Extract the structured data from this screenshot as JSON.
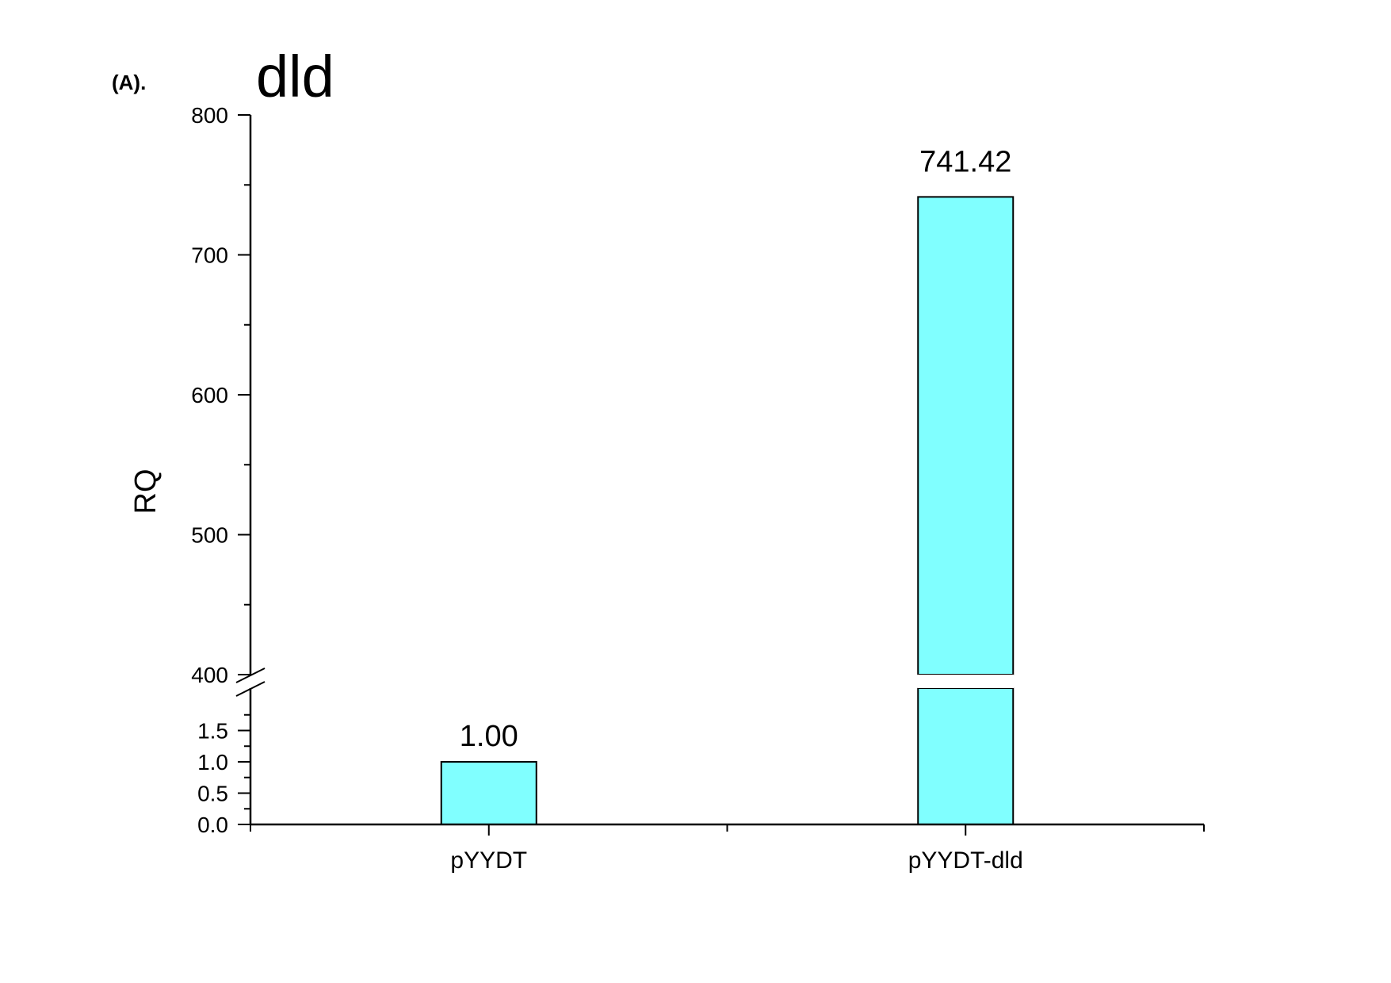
{
  "panel_label": "(A).",
  "chart_data": {
    "type": "bar",
    "title": "dld",
    "xlabel": "",
    "ylabel": "RQ",
    "categories": [
      "pYYDT",
      "pYYDT-dld"
    ],
    "values": [
      1.0,
      741.42
    ],
    "data_labels": [
      "1.00",
      "741.42"
    ],
    "bar_color": "#80ffff",
    "axis_break": true,
    "y_lower": {
      "range": [
        0,
        2.0
      ],
      "ticks": [
        "0.0",
        "0.5",
        "1.0",
        "1.5"
      ]
    },
    "y_upper": {
      "range": [
        400,
        800
      ],
      "ticks": [
        "400",
        "500",
        "600",
        "700",
        "800"
      ]
    },
    "grid": false,
    "legend": "none"
  }
}
